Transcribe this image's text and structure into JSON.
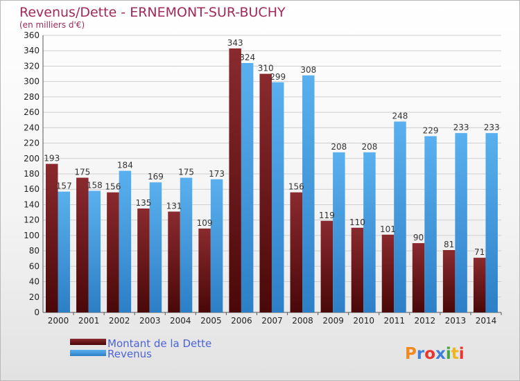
{
  "chart_data": {
    "type": "bar",
    "title": "Revenus/Dette - ERNEMONT-SUR-BUCHY",
    "subtitle": "(en milliers d'€)",
    "categories": [
      "2000",
      "2001",
      "2002",
      "2003",
      "2004",
      "2005",
      "2006",
      "2007",
      "2008",
      "2009",
      "2010",
      "2011",
      "2012",
      "2013",
      "2014"
    ],
    "series": [
      {
        "name": "Montant de la Dette",
        "color": "#7a1f22",
        "values": [
          193,
          175,
          156,
          135,
          131,
          109,
          343,
          310,
          156,
          119,
          110,
          101,
          90,
          81,
          71
        ]
      },
      {
        "name": "Revenus",
        "color": "#4ea4e2",
        "values": [
          157,
          158,
          184,
          169,
          175,
          173,
          324,
          299,
          308,
          208,
          208,
          248,
          229,
          233,
          233
        ]
      }
    ],
    "ylim": [
      0,
      360
    ],
    "yticks": [
      0,
      20,
      40,
      60,
      80,
      100,
      120,
      140,
      160,
      180,
      200,
      220,
      240,
      260,
      280,
      300,
      320,
      340,
      360
    ],
    "grid": true,
    "legend": "bottom-left"
  },
  "logo": {
    "text": "Proxiti",
    "colors": [
      "#f08a1c",
      "#3d7fd9",
      "#e8362e",
      "#3d7fd9",
      "#41a83c",
      "#f0b41c",
      "#e8362e"
    ]
  }
}
